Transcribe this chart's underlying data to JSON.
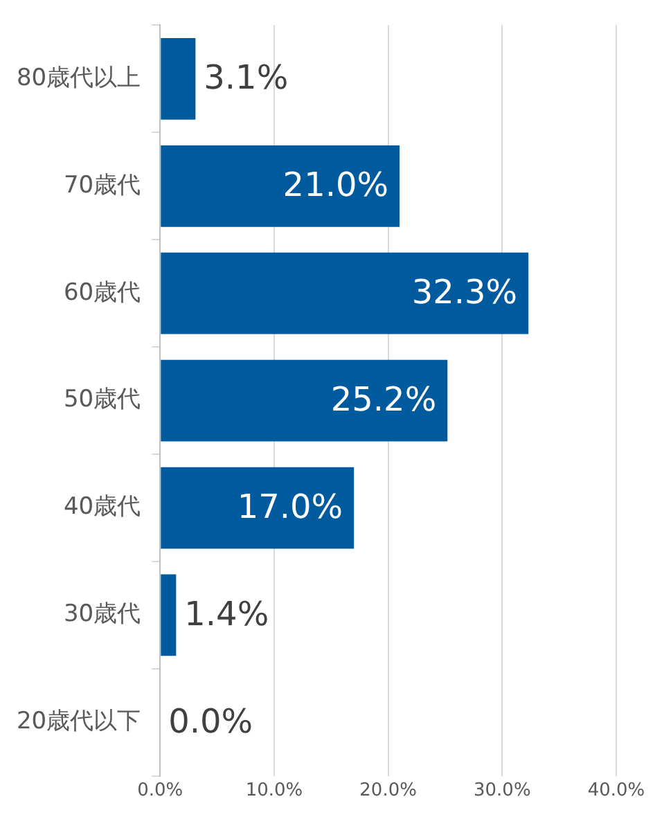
{
  "chart_data": {
    "type": "bar",
    "orientation": "horizontal",
    "categories": [
      "80歳代以上",
      "70歳代",
      "60歳代",
      "50歳代",
      "40歳代",
      "30歳代",
      "20歳代以下"
    ],
    "values": [
      3.1,
      21.0,
      32.3,
      25.2,
      17.0,
      1.4,
      0.0
    ],
    "value_labels": [
      "3.1%",
      "21.0%",
      "32.3%",
      "25.2%",
      "17.0%",
      "1.4%",
      "0.0%"
    ],
    "color": "#005a9e",
    "xlim": [
      0,
      40
    ],
    "xticks": [
      {
        "value": 0,
        "label": "0.0%"
      },
      {
        "value": 10,
        "label": "10.0%"
      },
      {
        "value": 20,
        "label": "20.0%"
      },
      {
        "value": 30,
        "label": "30.0%"
      },
      {
        "value": 40,
        "label": "40.0%"
      }
    ],
    "grid": "x",
    "legend": false
  }
}
